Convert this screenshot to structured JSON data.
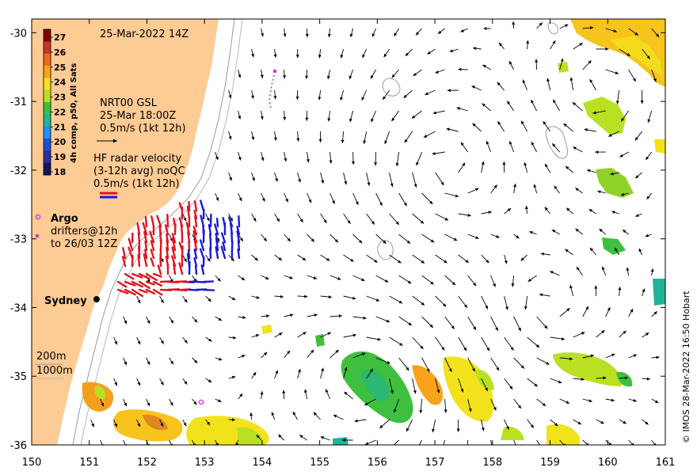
{
  "map": {
    "timestamp": "25-Mar-2022 14Z",
    "credit": "© IMOS 28-Mar-2022 16:50 Hobart",
    "lon_ticks": [
      "150",
      "151",
      "152",
      "153",
      "154",
      "155",
      "156",
      "157",
      "158",
      "159",
      "160",
      "161"
    ],
    "lat_ticks": [
      "-30",
      "-31",
      "-32",
      "-33",
      "-34",
      "-35",
      "-36"
    ],
    "lon_range": [
      150,
      161
    ],
    "lat_range": [
      -36,
      -29.8
    ]
  },
  "colorbar": {
    "title": "4h comp, p50, All Sats",
    "ticks": [
      "27",
      "26",
      "25",
      "24",
      "23",
      "22",
      "21",
      "20",
      "19",
      "18"
    ],
    "colors": [
      "#7f0000",
      "#c0392b",
      "#ef6a1a",
      "#f7a41c",
      "#f2e21b",
      "#b9e021",
      "#3fbf3f",
      "#1fb39a",
      "#1e90ff",
      "#1f4fd1",
      "#2b2e9f",
      "#14145f"
    ]
  },
  "legend": {
    "gsl_title": "NRT00 GSL",
    "gsl_time": "25-Mar 18:00Z",
    "gsl_scale": "0.5m/s (1kt 12h)",
    "hf_title": "HF radar velocity",
    "hf_avg": "(3-12h avg) noQC",
    "hf_scale": "0.5m/s (1kt 12h)",
    "argo": "Argo",
    "drifters_1": "drifters@12h",
    "drifters_2": "to 26/03 12Z",
    "sydney": "Sydney",
    "isobath_1": "200m",
    "isobath_2": "1000m"
  },
  "colors": {
    "land": "#fdcb94",
    "hf_red": "#e0141e",
    "hf_blue": "#1a1adc",
    "argo": "#e020e0",
    "isobath": "#9a9a9a"
  }
}
